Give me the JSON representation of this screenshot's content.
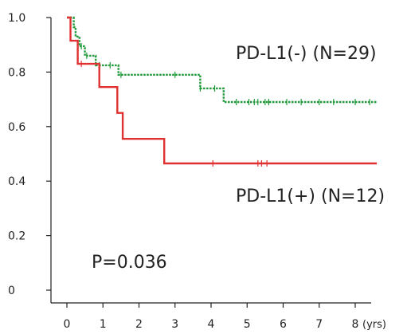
{
  "chart_data": {
    "type": "line",
    "title": "",
    "xlabel": "",
    "ylabel": "",
    "x_unit": "(yrs)",
    "xlim": [
      0,
      8
    ],
    "ylim": [
      0,
      1.0
    ],
    "x_ticks": [
      "0",
      "1",
      "2",
      "3",
      "4",
      "5",
      "6",
      "7",
      "8"
    ],
    "y_ticks": [
      "0",
      "0.2",
      "0.4",
      "0.6",
      "0.8",
      "1.0"
    ],
    "grid": false,
    "series": [
      {
        "name": "PD-L1(-) (N=29)",
        "color": "#1f9a3a",
        "style": "dotted",
        "step_x": [
          0,
          0.19,
          0.19,
          0.24,
          0.24,
          0.35,
          0.35,
          0.5,
          0.5,
          0.8,
          0.8,
          1.43,
          1.43,
          3.7,
          3.7,
          4.35,
          4.35,
          5.0,
          5.0,
          8.6
        ],
        "step_y": [
          1.0,
          1.0,
          0.965,
          0.965,
          0.93,
          0.93,
          0.895,
          0.895,
          0.86,
          0.86,
          0.825,
          0.825,
          0.79,
          0.79,
          0.74,
          0.74,
          0.69,
          0.69,
          0.69,
          0.69
        ],
        "censor_x": [
          0.4,
          0.55,
          0.9,
          1.2,
          1.5,
          3.0,
          3.7,
          4.1,
          4.7,
          5.05,
          5.2,
          5.3,
          5.5,
          5.6,
          6.1,
          6.5,
          7.0,
          7.4,
          8.0,
          8.4
        ]
      },
      {
        "name": "PD-L1(+) (N=12)",
        "color": "#e03131",
        "style": "solid",
        "step_x": [
          0,
          0.1,
          0.1,
          0.3,
          0.3,
          0.9,
          0.9,
          1.4,
          1.4,
          1.55,
          1.55,
          2.7,
          2.7,
          8.6
        ],
        "step_y": [
          1.0,
          1.0,
          0.915,
          0.915,
          0.83,
          0.83,
          0.745,
          0.745,
          0.65,
          0.65,
          0.555,
          0.555,
          0.465,
          0.465
        ],
        "censor_x": [
          0.4,
          4.05,
          5.3,
          5.4,
          5.55
        ]
      }
    ],
    "annotations": [
      "P=0.036"
    ]
  }
}
